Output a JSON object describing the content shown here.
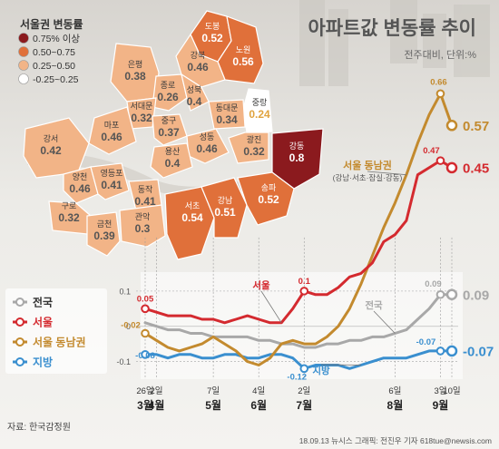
{
  "title": "아파트값 변동률 추이",
  "subtitle": "전주대비, 단위:%",
  "map": {
    "legend_title": "서울권 변동률",
    "legend": [
      {
        "label": "0.75% 이상",
        "color": "#8b1a1e"
      },
      {
        "label": "0.50~0.75",
        "color": "#e0703a"
      },
      {
        "label": "0.25~0.50",
        "color": "#f2b487"
      },
      {
        "label": "-0.25~0.25",
        "color": "#ffffff"
      }
    ],
    "districts": [
      {
        "name": "도봉",
        "value": "0.52",
        "color": "#e0703a"
      },
      {
        "name": "노원",
        "value": "0.56",
        "color": "#e0703a"
      },
      {
        "name": "강북",
        "value": "0.46",
        "color": "#f2b487"
      },
      {
        "name": "은평",
        "value": "0.38",
        "color": "#f2b487"
      },
      {
        "name": "종로",
        "value": "0.26",
        "color": "#f2b487"
      },
      {
        "name": "성북",
        "value": "0.4",
        "color": "#f2b487"
      },
      {
        "name": "중랑",
        "value": "0.24",
        "color": "#ffffff"
      },
      {
        "name": "서대문",
        "value": "0.32",
        "color": "#f2b487"
      },
      {
        "name": "동대문",
        "value": "0.34",
        "color": "#f2b487"
      },
      {
        "name": "마포",
        "value": "0.46",
        "color": "#f2b487"
      },
      {
        "name": "중구",
        "value": "0.37",
        "color": "#f2b487"
      },
      {
        "name": "성동",
        "value": "0.46",
        "color": "#f2b487"
      },
      {
        "name": "광진",
        "value": "0.32",
        "color": "#f2b487"
      },
      {
        "name": "강서",
        "value": "0.42",
        "color": "#f2b487"
      },
      {
        "name": "용산",
        "value": "0.4",
        "color": "#f2b487"
      },
      {
        "name": "강동",
        "value": "0.8",
        "color": "#8b1a1e"
      },
      {
        "name": "양천",
        "value": "0.46",
        "color": "#f2b487"
      },
      {
        "name": "영등포",
        "value": "0.41",
        "color": "#f2b487"
      },
      {
        "name": "동작",
        "value": "0.41",
        "color": "#f2b487"
      },
      {
        "name": "구로",
        "value": "0.32",
        "color": "#f2b487"
      },
      {
        "name": "금천",
        "value": "0.39",
        "color": "#f2b487"
      },
      {
        "name": "관악",
        "value": "0.3",
        "color": "#f2b487"
      },
      {
        "name": "서초",
        "value": "0.54",
        "color": "#e0703a"
      },
      {
        "name": "강남",
        "value": "0.51",
        "color": "#e0703a"
      },
      {
        "name": "송파",
        "value": "0.52",
        "color": "#e0703a"
      }
    ]
  },
  "chart_data": {
    "type": "line",
    "title": "아파트값 변동률 추이",
    "subtitle": "전주대비, 단위:%",
    "ylim": [
      -0.15,
      0.72
    ],
    "yticks": [
      "0.1",
      "0",
      "-0.1"
    ],
    "x_ticks": [
      {
        "week": 0,
        "day": "26일",
        "month": "3월"
      },
      {
        "week": 1,
        "day": "2일",
        "month": "4월"
      },
      {
        "week": 6,
        "day": "7일",
        "month": "5월"
      },
      {
        "week": 10,
        "day": "4일",
        "month": "6월"
      },
      {
        "week": 14,
        "day": "2일",
        "month": "7월"
      },
      {
        "week": 22,
        "day": "6일",
        "month": "8월"
      },
      {
        "week": 26,
        "day": "3일",
        "month": "9월"
      },
      {
        "week": 27,
        "day": "10일",
        "month": ""
      }
    ],
    "series": [
      {
        "name": "전국",
        "color": "#a8a8a8",
        "values": [
          0.01,
          0.0,
          -0.01,
          -0.01,
          -0.02,
          -0.02,
          -0.03,
          -0.03,
          -0.03,
          -0.03,
          -0.04,
          -0.04,
          -0.05,
          -0.05,
          -0.06,
          -0.06,
          -0.05,
          -0.05,
          -0.04,
          -0.04,
          -0.03,
          -0.03,
          -0.02,
          -0.01,
          0.02,
          0.05,
          0.09,
          0.09
        ]
      },
      {
        "name": "서울",
        "color": "#d42a2f",
        "values": [
          0.05,
          0.04,
          0.03,
          0.03,
          0.03,
          0.02,
          0.02,
          0.01,
          0.02,
          0.03,
          0.02,
          0.01,
          0.01,
          0.05,
          0.1,
          0.09,
          0.09,
          0.11,
          0.14,
          0.15,
          0.18,
          0.24,
          0.26,
          0.3,
          0.43,
          0.45,
          0.47,
          0.45
        ]
      },
      {
        "name": "서울 동남권",
        "color": "#c38a2e",
        "values": [
          -0.02,
          -0.04,
          -0.06,
          -0.07,
          -0.06,
          -0.05,
          -0.03,
          -0.05,
          -0.07,
          -0.1,
          -0.11,
          -0.09,
          -0.05,
          -0.04,
          -0.05,
          -0.05,
          -0.03,
          0.0,
          0.05,
          0.12,
          0.2,
          0.28,
          0.35,
          0.43,
          0.52,
          0.6,
          0.66,
          0.57
        ]
      },
      {
        "name": "지방",
        "color": "#3a8fcf",
        "values": [
          -0.08,
          -0.08,
          -0.09,
          -0.08,
          -0.08,
          -0.09,
          -0.09,
          -0.08,
          -0.08,
          -0.09,
          -0.09,
          -0.08,
          -0.08,
          -0.09,
          -0.12,
          -0.11,
          -0.11,
          -0.11,
          -0.12,
          -0.11,
          -0.1,
          -0.09,
          -0.09,
          -0.09,
          -0.08,
          -0.07,
          -0.07,
          -0.07
        ]
      }
    ],
    "point_labels": [
      {
        "series": 1,
        "week": 0,
        "text": "0.05"
      },
      {
        "series": 1,
        "week": 14,
        "text": "0.1"
      },
      {
        "series": 1,
        "week": 26,
        "text": "0.47"
      },
      {
        "series": 2,
        "week": 0,
        "text": "-0.02"
      },
      {
        "series": 2,
        "week": 26,
        "text": "0.66"
      },
      {
        "series": 0,
        "week": 26,
        "text": "0.09"
      },
      {
        "series": 3,
        "week": 0,
        "text": "-0.08"
      },
      {
        "series": 3,
        "week": 14,
        "text": "-0.12"
      },
      {
        "series": 3,
        "week": 26,
        "text": "-0.07"
      }
    ],
    "end_labels": [
      {
        "series": 2,
        "text": "0.57"
      },
      {
        "series": 1,
        "text": "0.45"
      },
      {
        "series": 0,
        "text": "0.09"
      },
      {
        "series": 3,
        "text": "-0.07"
      }
    ],
    "callouts": [
      {
        "series": 1,
        "text": "서울"
      },
      {
        "series": 0,
        "text": "전국"
      },
      {
        "series": 3,
        "text": "지방"
      },
      {
        "series": 2,
        "text": "서울 동남권",
        "sub": "(강남·서초·잠실·강동)"
      }
    ]
  },
  "source": "자료: 한국감정원",
  "credit": "18.09.13 뉴시스 그래픽: 전진우 기자 618tue@newsis.com"
}
